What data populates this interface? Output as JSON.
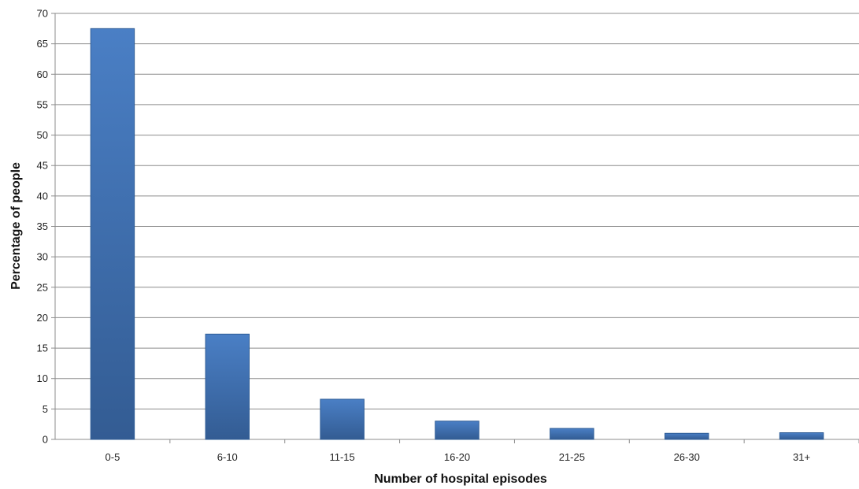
{
  "chart_data": {
    "type": "bar",
    "title": "",
    "xlabel": "Number of hospital episodes",
    "ylabel": "Percentage of people",
    "categories": [
      "0-5",
      "6-10",
      "11-15",
      "16-20",
      "21-25",
      "26-30",
      "31+"
    ],
    "values": [
      67.5,
      17.3,
      6.6,
      3.0,
      1.8,
      1.0,
      1.1
    ],
    "ylim": [
      0,
      70
    ],
    "yticks": [
      "0",
      "5",
      "10",
      "15",
      "20",
      "25",
      "30",
      "35",
      "40",
      "45",
      "50",
      "55",
      "60",
      "65",
      "70"
    ],
    "grid": true,
    "legend": "none",
    "colors": {
      "bar_light": "#4a7fc5",
      "bar_dark": "#335c93",
      "grid": "#8c8c8c"
    }
  }
}
